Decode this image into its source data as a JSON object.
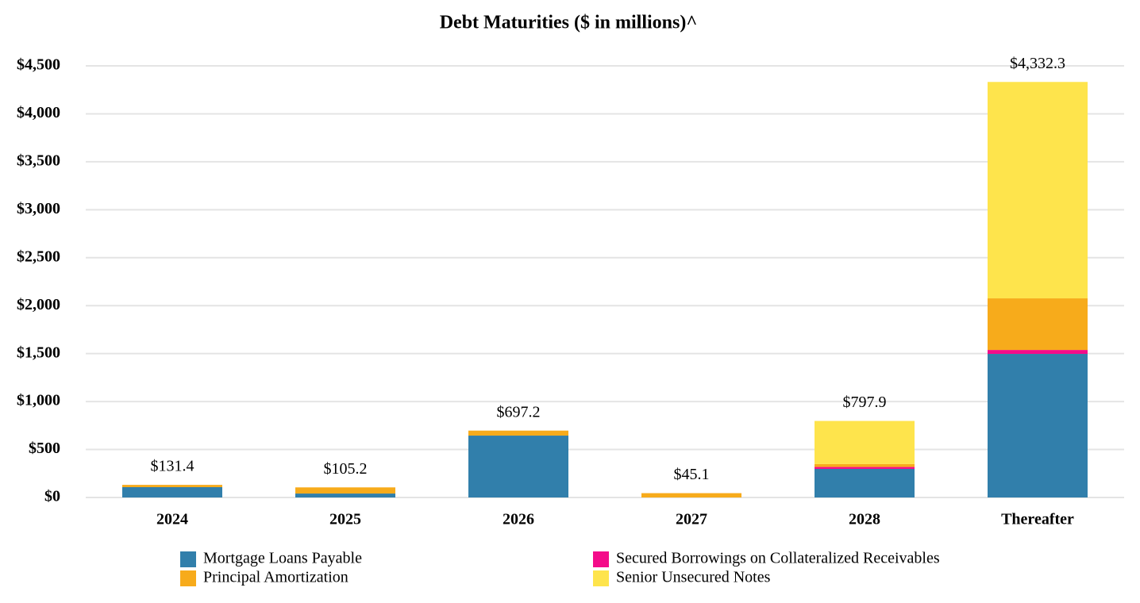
{
  "chart_data": {
    "type": "stacked_bar",
    "title": "Debt Maturities ($ in millions)^",
    "categories": [
      "2024",
      "2025",
      "2026",
      "2027",
      "2028",
      "Thereafter"
    ],
    "series": [
      {
        "name": "Mortgage Loans Payable",
        "color": "#317fab",
        "values": [
          107.5,
          41,
          645,
          0,
          298,
          1497
        ]
      },
      {
        "name": "Secured Borrowings on Collateralized Receivables",
        "color": "#f40c8a",
        "values": [
          0,
          0,
          0,
          0,
          20,
          41
        ]
      },
      {
        "name": "Principal Amortization",
        "color": "#f7ab1b",
        "values": [
          23.9,
          64.2,
          52.2,
          45.1,
          30,
          538
        ]
      },
      {
        "name": "Senior Unsecured Notes",
        "color": "#fee44c",
        "values": [
          0,
          0,
          0,
          0,
          449.9,
          2256.3
        ]
      }
    ],
    "totals": [
      131.4,
      105.2,
      697.2,
      45.1,
      797.9,
      4332.3
    ],
    "total_labels": [
      "$131.4",
      "$105.2",
      "$697.2",
      "$45.1",
      "$797.9",
      "$4,332.3"
    ],
    "ylim": [
      0,
      4500
    ],
    "yticks": [
      {
        "value": 0,
        "label": "$0"
      },
      {
        "value": 500,
        "label": "$500"
      },
      {
        "value": 1000,
        "label": "$1,000"
      },
      {
        "value": 1500,
        "label": "$1,500"
      },
      {
        "value": 2000,
        "label": "$2,000"
      },
      {
        "value": 2500,
        "label": "$2,500"
      },
      {
        "value": 3000,
        "label": "$3,000"
      },
      {
        "value": 3500,
        "label": "$3,500"
      },
      {
        "value": 4000,
        "label": "$4,000"
      },
      {
        "value": 4500,
        "label": "$4,500"
      }
    ],
    "grid": true,
    "legend": "bottom"
  }
}
